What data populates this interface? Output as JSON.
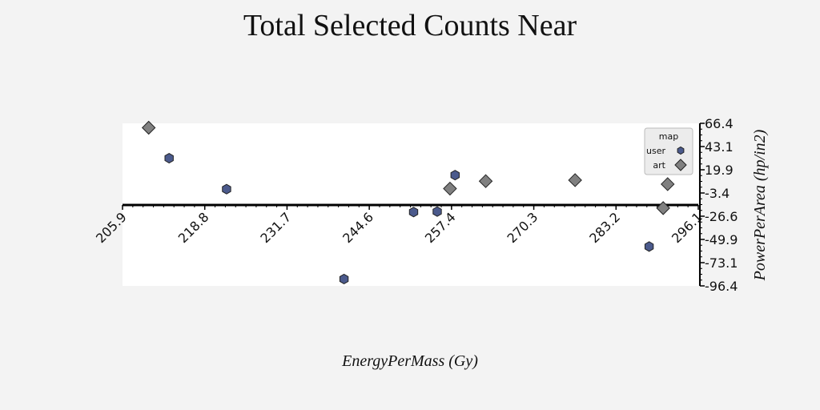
{
  "chart_data": {
    "type": "scatter",
    "title": "Total Selected Counts Near",
    "xlabel": "EnergyPerMass (Gy)",
    "ylabel": "PowerPerArea (hp/in2)",
    "xlim": [
      205.9,
      296.1
    ],
    "ylim": [
      -96.4,
      66.4
    ],
    "x_ticks": [
      "205.9",
      "218.8",
      "231.7",
      "244.6",
      "257.4",
      "270.3",
      "283.2",
      "296.1"
    ],
    "y_ticks": [
      "66.4",
      "43.1",
      "19.9",
      "-3.4",
      "-26.6",
      "-49.9",
      "-73.1",
      "-96.4"
    ],
    "legend": {
      "title": "map",
      "position": "top-right"
    },
    "grid": false,
    "series": [
      {
        "name": "user",
        "marker": "hexagon",
        "color": "#4b5a8c",
        "points": [
          {
            "x": 213.2,
            "y": 31.5
          },
          {
            "x": 222.2,
            "y": 0.5
          },
          {
            "x": 240.6,
            "y": -89.5
          },
          {
            "x": 251.5,
            "y": -22.5
          },
          {
            "x": 255.2,
            "y": -22.0
          },
          {
            "x": 258.0,
            "y": 14.5
          },
          {
            "x": 288.4,
            "y": -57.0
          }
        ]
      },
      {
        "name": "art",
        "marker": "diamond",
        "color": "#808080",
        "points": [
          {
            "x": 210.0,
            "y": 62.0
          },
          {
            "x": 257.2,
            "y": 1.0
          },
          {
            "x": 262.8,
            "y": 8.5
          },
          {
            "x": 276.8,
            "y": 9.5
          },
          {
            "x": 290.6,
            "y": -18.5
          },
          {
            "x": 291.3,
            "y": 5.5
          }
        ]
      }
    ]
  }
}
